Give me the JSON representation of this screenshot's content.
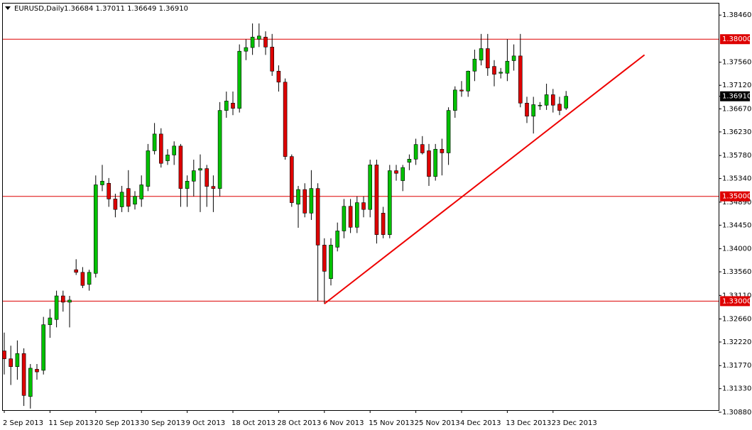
{
  "chart_data": {
    "type": "candlestick",
    "title": "EURUSD,Daily",
    "subtitle": "1.36684 1.37011 1.36649 1.36910",
    "categories": [
      "2 Sep 2013",
      null,
      null,
      null,
      null,
      null,
      null,
      "11 Sep 2013",
      null,
      null,
      null,
      null,
      null,
      null,
      "20 Sep 2013",
      null,
      null,
      null,
      null,
      null,
      null,
      "30 Sep 2013",
      null,
      null,
      null,
      null,
      null,
      null,
      "9 Oct 2013",
      null,
      null,
      null,
      null,
      null,
      null,
      "18 Oct 2013",
      null,
      null,
      null,
      null,
      null,
      null,
      "28 Oct 2013",
      null,
      null,
      null,
      null,
      null,
      null,
      "6 Nov 2013",
      null,
      null,
      null,
      null,
      null,
      null,
      "15 Nov 2013",
      null,
      null,
      null,
      null,
      null,
      null,
      "25 Nov 2013",
      null,
      null,
      null,
      null,
      null,
      null,
      "4 Dec 2013",
      null,
      null,
      null,
      null,
      null,
      null,
      "13 Dec 2013",
      null,
      null,
      null,
      null,
      null,
      null,
      "23 Dec 2013",
      null,
      null
    ],
    "ohlc": [
      [
        1.3205,
        1.324,
        1.316,
        1.319
      ],
      [
        1.319,
        1.3215,
        1.314,
        1.3175
      ],
      [
        1.3175,
        1.3225,
        1.315,
        1.32
      ],
      [
        1.32,
        1.321,
        1.31,
        1.312
      ],
      [
        1.3118,
        1.318,
        1.3095,
        1.3172
      ],
      [
        1.317,
        1.318,
        1.315,
        1.3165
      ],
      [
        1.3168,
        1.327,
        1.316,
        1.3255
      ],
      [
        1.3255,
        1.3285,
        1.323,
        1.3268
      ],
      [
        1.3265,
        1.332,
        1.325,
        1.331
      ],
      [
        1.331,
        1.332,
        1.328,
        1.3298
      ],
      [
        1.3298,
        1.331,
        1.325,
        1.3302
      ],
      [
        1.336,
        1.338,
        1.335,
        1.3355
      ],
      [
        1.3355,
        1.3365,
        1.3325,
        1.333
      ],
      [
        1.3332,
        1.336,
        1.332,
        1.3355
      ],
      [
        1.3353,
        1.354,
        1.3345,
        1.3522
      ],
      [
        1.3522,
        1.356,
        1.351,
        1.3529
      ],
      [
        1.3525,
        1.3535,
        1.348,
        1.3495
      ],
      [
        1.3495,
        1.3505,
        1.346,
        1.3475
      ],
      [
        1.348,
        1.352,
        1.347,
        1.3508
      ],
      [
        1.3515,
        1.355,
        1.347,
        1.3481
      ],
      [
        1.3485,
        1.351,
        1.3475,
        1.35
      ],
      [
        1.3495,
        1.354,
        1.348,
        1.3522
      ],
      [
        1.3519,
        1.36,
        1.351,
        1.3587
      ],
      [
        1.3587,
        1.364,
        1.358,
        1.3619
      ],
      [
        1.3619,
        1.363,
        1.3555,
        1.3563
      ],
      [
        1.3568,
        1.359,
        1.356,
        1.3579
      ],
      [
        1.3579,
        1.3605,
        1.356,
        1.3596
      ],
      [
        1.3596,
        1.36,
        1.348,
        1.3515
      ],
      [
        1.3515,
        1.354,
        1.348,
        1.3529
      ],
      [
        1.3529,
        1.357,
        1.35,
        1.3549
      ],
      [
        1.355,
        1.358,
        1.347,
        1.3553
      ],
      [
        1.3553,
        1.356,
        1.348,
        1.3519
      ],
      [
        1.3519,
        1.354,
        1.347,
        1.3515
      ],
      [
        1.3515,
        1.368,
        1.35,
        1.3664
      ],
      [
        1.3664,
        1.37,
        1.365,
        1.3682
      ],
      [
        1.3678,
        1.37,
        1.3655,
        1.3668
      ],
      [
        1.3668,
        1.379,
        1.366,
        1.3777
      ],
      [
        1.3777,
        1.38,
        1.376,
        1.3784
      ],
      [
        1.3784,
        1.383,
        1.377,
        1.3804
      ],
      [
        1.38,
        1.383,
        1.3785,
        1.3806
      ],
      [
        1.3804,
        1.3815,
        1.377,
        1.3785
      ],
      [
        1.3785,
        1.381,
        1.373,
        1.3739
      ],
      [
        1.3739,
        1.375,
        1.37,
        1.3718
      ],
      [
        1.3718,
        1.3725,
        1.357,
        1.3576
      ],
      [
        1.3576,
        1.358,
        1.348,
        1.3488
      ],
      [
        1.3485,
        1.352,
        1.344,
        1.3513
      ],
      [
        1.3513,
        1.3525,
        1.346,
        1.3468
      ],
      [
        1.3468,
        1.355,
        1.3455,
        1.3515
      ],
      [
        1.3515,
        1.3525,
        1.33,
        1.3407
      ],
      [
        1.3407,
        1.342,
        1.3295,
        1.3357
      ],
      [
        1.3343,
        1.342,
        1.333,
        1.3407
      ],
      [
        1.3403,
        1.345,
        1.3395,
        1.3434
      ],
      [
        1.3434,
        1.3495,
        1.342,
        1.3481
      ],
      [
        1.3481,
        1.3495,
        1.343,
        1.3441
      ],
      [
        1.3441,
        1.35,
        1.343,
        1.3488
      ],
      [
        1.3488,
        1.35,
        1.346,
        1.3475
      ],
      [
        1.3475,
        1.357,
        1.346,
        1.356
      ],
      [
        1.356,
        1.357,
        1.341,
        1.3427
      ],
      [
        1.3468,
        1.348,
        1.342,
        1.3427
      ],
      [
        1.3427,
        1.356,
        1.342,
        1.3549
      ],
      [
        1.3549,
        1.356,
        1.353,
        1.3544
      ],
      [
        1.353,
        1.356,
        1.351,
        1.3555
      ],
      [
        1.3565,
        1.358,
        1.355,
        1.3571
      ],
      [
        1.3571,
        1.361,
        1.356,
        1.3599
      ],
      [
        1.3599,
        1.3615,
        1.358,
        1.3583
      ],
      [
        1.3587,
        1.36,
        1.352,
        1.3538
      ],
      [
        1.3538,
        1.36,
        1.353,
        1.359
      ],
      [
        1.359,
        1.361,
        1.354,
        1.3583
      ],
      [
        1.3583,
        1.367,
        1.356,
        1.3664
      ],
      [
        1.3664,
        1.371,
        1.365,
        1.3703
      ],
      [
        1.3703,
        1.372,
        1.369,
        1.3701
      ],
      [
        1.3701,
        1.374,
        1.369,
        1.3739
      ],
      [
        1.3739,
        1.378,
        1.372,
        1.3762
      ],
      [
        1.376,
        1.381,
        1.375,
        1.3782
      ],
      [
        1.3782,
        1.381,
        1.373,
        1.3745
      ],
      [
        1.3748,
        1.376,
        1.371,
        1.3733
      ],
      [
        1.3735,
        1.3745,
        1.3725,
        1.3737
      ],
      [
        1.3735,
        1.38,
        1.372,
        1.3758
      ],
      [
        1.3759,
        1.379,
        1.374,
        1.3768
      ],
      [
        1.3768,
        1.381,
        1.367,
        1.3678
      ],
      [
        1.3678,
        1.369,
        1.364,
        1.3653
      ],
      [
        1.3653,
        1.369,
        1.362,
        1.3675
      ],
      [
        1.3674,
        1.368,
        1.3665,
        1.3674
      ],
      [
        1.3674,
        1.3715,
        1.3665,
        1.3694
      ],
      [
        1.3694,
        1.3705,
        1.366,
        1.3674
      ],
      [
        1.3676,
        1.369,
        1.3655,
        1.3664
      ],
      [
        1.36684,
        1.37011,
        1.36649,
        1.3691
      ]
    ],
    "up_color": "#00c000",
    "down_color": "#dd0000",
    "ylim": [
      1.3092,
      1.3868
    ],
    "yticks": [
      {
        "value": 1.3846,
        "label": "1.38460"
      },
      {
        "value": 1.3756,
        "label": "1.37560"
      },
      {
        "value": 1.3712,
        "label": "1.37120"
      },
      {
        "value": 1.3667,
        "label": "1.36670"
      },
      {
        "value": 1.3623,
        "label": "1.36230"
      },
      {
        "value": 1.3578,
        "label": "1.35780"
      },
      {
        "value": 1.3534,
        "label": "1.35340"
      },
      {
        "value": 1.3489,
        "label": "1.34890"
      },
      {
        "value": 1.3445,
        "label": "1.34450"
      },
      {
        "value": 1.34,
        "label": "1.34000"
      },
      {
        "value": 1.3356,
        "label": "1.33560"
      },
      {
        "value": 1.3311,
        "label": "1.33110"
      },
      {
        "value": 1.3266,
        "label": "1.32660"
      },
      {
        "value": 1.3222,
        "label": "1.32220"
      },
      {
        "value": 1.3177,
        "label": "1.31770"
      },
      {
        "value": 1.3133,
        "label": "1.31330"
      },
      {
        "value": 1.3088,
        "label": "1.30880"
      }
    ],
    "levels": [
      {
        "value": 1.38,
        "label": "1.38000"
      },
      {
        "value": 1.35,
        "label": "1.35000"
      },
      {
        "value": 1.33,
        "label": "1.33000"
      }
    ],
    "level_color": "#dd0000",
    "bid": {
      "value": 1.3691,
      "label": "1.36910"
    },
    "trendline": {
      "x": [
        49,
        98
      ],
      "values": [
        1.3295,
        1.377
      ],
      "color": "#ee0000"
    },
    "grid": false
  }
}
